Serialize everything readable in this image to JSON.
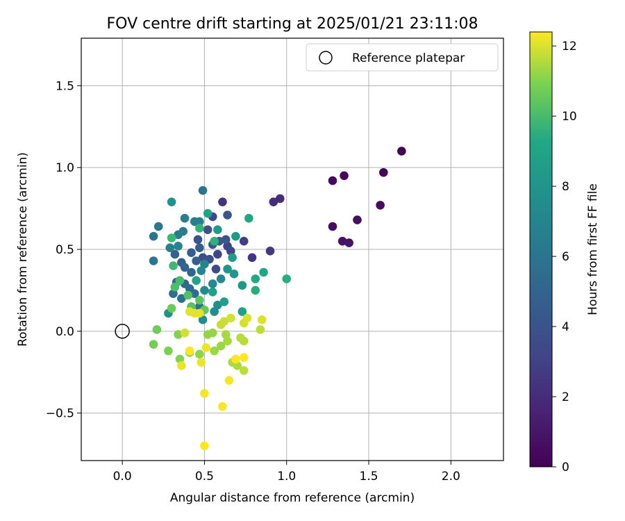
{
  "chart_data": {
    "type": "scatter",
    "title": "FOV centre drift starting at 2025/01/21 23:11:08",
    "xlabel": "Angular distance from reference (arcmin)",
    "ylabel": "Rotation from reference (arcmin)",
    "xlim": [
      -0.25,
      2.32
    ],
    "ylim": [
      -0.79,
      1.79
    ],
    "xticks": [
      0.0,
      0.5,
      1.0,
      1.5,
      2.0
    ],
    "yticks": [
      -0.5,
      0.0,
      0.5,
      1.0,
      1.5
    ],
    "xtick_labels": [
      "0.0",
      "0.5",
      "1.0",
      "1.5",
      "2.0"
    ],
    "ytick_labels": [
      "−0.5",
      "0.0",
      "0.5",
      "1.0",
      "1.5"
    ],
    "grid": true,
    "legend": {
      "placement": "top-right",
      "entries": [
        "Reference platepar"
      ]
    },
    "reference_point": {
      "x": 0.0,
      "y": 0.0,
      "label": "Reference platepar"
    },
    "colorbar": {
      "label": "Hours from first FF file",
      "min": 0,
      "max": 12.4,
      "ticks": [
        0,
        2,
        4,
        6,
        8,
        10,
        12
      ],
      "tick_labels": [
        "0",
        "2",
        "4",
        "6",
        "8",
        "10",
        "12"
      ],
      "colormap": "viridis"
    },
    "series": [
      {
        "points": [
          [
            1.7,
            1.1,
            0.0
          ],
          [
            1.59,
            0.97,
            0.2
          ],
          [
            1.35,
            0.95,
            0.3
          ],
          [
            1.28,
            0.92,
            0.4
          ],
          [
            1.57,
            0.77,
            0.5
          ],
          [
            1.28,
            0.64,
            0.6
          ],
          [
            1.43,
            0.68,
            0.7
          ],
          [
            1.34,
            0.55,
            0.8
          ],
          [
            1.38,
            0.54,
            0.9
          ],
          [
            0.96,
            0.81,
            2.0
          ],
          [
            0.92,
            0.79,
            2.1
          ],
          [
            0.61,
            0.79,
            2.2
          ],
          [
            0.79,
            0.45,
            2.4
          ],
          [
            0.9,
            0.49,
            2.6
          ],
          [
            0.74,
            0.55,
            2.8
          ],
          [
            0.64,
            0.52,
            3.0
          ],
          [
            0.66,
            0.49,
            3.2
          ],
          [
            0.58,
            0.47,
            3.3
          ],
          [
            0.55,
            0.7,
            3.4
          ],
          [
            0.57,
            0.38,
            3.6
          ],
          [
            0.49,
            0.45,
            3.7
          ],
          [
            0.53,
            0.44,
            3.8
          ],
          [
            0.46,
            0.56,
            3.9
          ],
          [
            0.52,
            0.62,
            4.0
          ],
          [
            0.64,
            0.71,
            4.1
          ],
          [
            0.63,
            0.56,
            4.2
          ],
          [
            0.59,
            0.55,
            4.3
          ],
          [
            0.55,
            0.53,
            4.4
          ],
          [
            0.47,
            0.51,
            4.5
          ],
          [
            0.42,
            0.48,
            4.6
          ],
          [
            0.45,
            0.43,
            4.7
          ],
          [
            0.36,
            0.42,
            4.8
          ],
          [
            0.32,
            0.47,
            4.9
          ],
          [
            0.38,
            0.39,
            5.0
          ],
          [
            0.42,
            0.36,
            5.1
          ],
          [
            0.33,
            0.3,
            5.2
          ],
          [
            0.38,
            0.29,
            5.3
          ],
          [
            0.41,
            0.26,
            5.4
          ],
          [
            0.44,
            0.23,
            5.5
          ],
          [
            0.31,
            0.23,
            5.6
          ],
          [
            0.36,
            0.2,
            5.7
          ],
          [
            0.47,
            0.15,
            5.8
          ],
          [
            0.49,
            0.86,
            5.9
          ],
          [
            0.19,
            0.43,
            6.0
          ],
          [
            0.19,
            0.58,
            6.1
          ],
          [
            0.22,
            0.64,
            6.2
          ],
          [
            0.34,
            0.59,
            6.3
          ],
          [
            0.37,
            0.61,
            6.4
          ],
          [
            0.38,
            0.69,
            6.5
          ],
          [
            0.44,
            0.67,
            6.6
          ],
          [
            0.47,
            0.67,
            6.7
          ],
          [
            0.29,
            0.51,
            6.8
          ],
          [
            0.34,
            0.52,
            6.9
          ],
          [
            0.5,
            0.41,
            7.0
          ],
          [
            0.48,
            0.37,
            7.1
          ],
          [
            0.6,
            0.32,
            7.2
          ],
          [
            0.55,
            0.29,
            7.3
          ],
          [
            0.5,
            0.25,
            7.4
          ],
          [
            0.56,
            0.12,
            7.5
          ],
          [
            0.49,
            0.07,
            7.6
          ],
          [
            0.58,
            0.16,
            7.7
          ],
          [
            0.28,
            0.11,
            7.8
          ],
          [
            0.3,
            0.79,
            7.9
          ],
          [
            0.64,
            0.38,
            8.0
          ],
          [
            0.68,
            0.35,
            8.1
          ],
          [
            0.73,
            0.28,
            8.2
          ],
          [
            0.69,
            0.58,
            8.3
          ],
          [
            0.58,
            0.62,
            8.4
          ],
          [
            0.67,
            0.45,
            8.5
          ],
          [
            0.62,
            0.18,
            8.6
          ],
          [
            0.73,
            0.12,
            8.7
          ],
          [
            0.55,
            0.24,
            8.8
          ],
          [
            0.45,
            0.31,
            8.9
          ],
          [
            0.52,
            0.72,
            9.0
          ],
          [
            0.77,
            0.69,
            9.1
          ],
          [
            0.86,
            0.36,
            9.2
          ],
          [
            0.81,
            0.32,
            9.3
          ],
          [
            0.81,
            0.25,
            9.4
          ],
          [
            1.0,
            0.32,
            9.5
          ],
          [
            0.56,
            0.55,
            9.6
          ],
          [
            0.47,
            0.63,
            9.7
          ],
          [
            0.3,
            0.57,
            9.8
          ],
          [
            0.31,
            0.4,
            9.9
          ],
          [
            0.35,
            0.31,
            10.0
          ],
          [
            0.32,
            0.27,
            10.1
          ],
          [
            0.4,
            0.22,
            10.2
          ],
          [
            0.42,
            0.15,
            10.3
          ],
          [
            0.47,
            0.19,
            10.4
          ],
          [
            0.5,
            0.13,
            10.5
          ],
          [
            0.3,
            0.14,
            10.6
          ],
          [
            0.21,
            0.01,
            10.7
          ],
          [
            0.19,
            -0.08,
            10.8
          ],
          [
            0.28,
            -0.12,
            10.9
          ],
          [
            0.34,
            -0.02,
            11.0
          ],
          [
            0.35,
            -0.17,
            11.0
          ],
          [
            0.41,
            -0.13,
            11.1
          ],
          [
            0.47,
            -0.14,
            11.1
          ],
          [
            0.52,
            -0.02,
            11.2
          ],
          [
            0.55,
            -0.01,
            11.2
          ],
          [
            0.56,
            -0.12,
            11.3
          ],
          [
            0.6,
            -0.09,
            11.3
          ],
          [
            0.63,
            -0.02,
            11.4
          ],
          [
            0.64,
            -0.06,
            11.4
          ],
          [
            0.67,
            -0.19,
            11.5
          ],
          [
            0.7,
            -0.21,
            11.5
          ],
          [
            0.72,
            -0.04,
            11.6
          ],
          [
            0.74,
            -0.06,
            11.6
          ],
          [
            0.74,
            -0.24,
            11.7
          ],
          [
            0.84,
            0.01,
            11.7
          ],
          [
            0.6,
            0.04,
            11.8
          ],
          [
            0.62,
            0.06,
            11.8
          ],
          [
            0.66,
            0.08,
            11.9
          ],
          [
            0.74,
            0.05,
            11.9
          ],
          [
            0.76,
            0.08,
            12.0
          ],
          [
            0.85,
            0.07,
            12.0
          ],
          [
            0.47,
            0.11,
            12.1
          ],
          [
            0.44,
            0.11,
            12.1
          ],
          [
            0.41,
            0.12,
            12.1
          ],
          [
            0.36,
            -0.21,
            12.2
          ],
          [
            0.48,
            -0.19,
            12.2
          ],
          [
            0.51,
            -0.1,
            12.2
          ],
          [
            0.5,
            -0.38,
            12.3
          ],
          [
            0.61,
            -0.46,
            12.3
          ],
          [
            0.65,
            -0.3,
            12.3
          ],
          [
            0.5,
            -0.7,
            12.4
          ],
          [
            0.41,
            -0.12,
            12.4
          ],
          [
            0.69,
            -0.17,
            12.4
          ],
          [
            0.74,
            -0.16,
            12.4
          ],
          [
            0.38,
            -0.01,
            11.9
          ]
        ]
      }
    ]
  }
}
